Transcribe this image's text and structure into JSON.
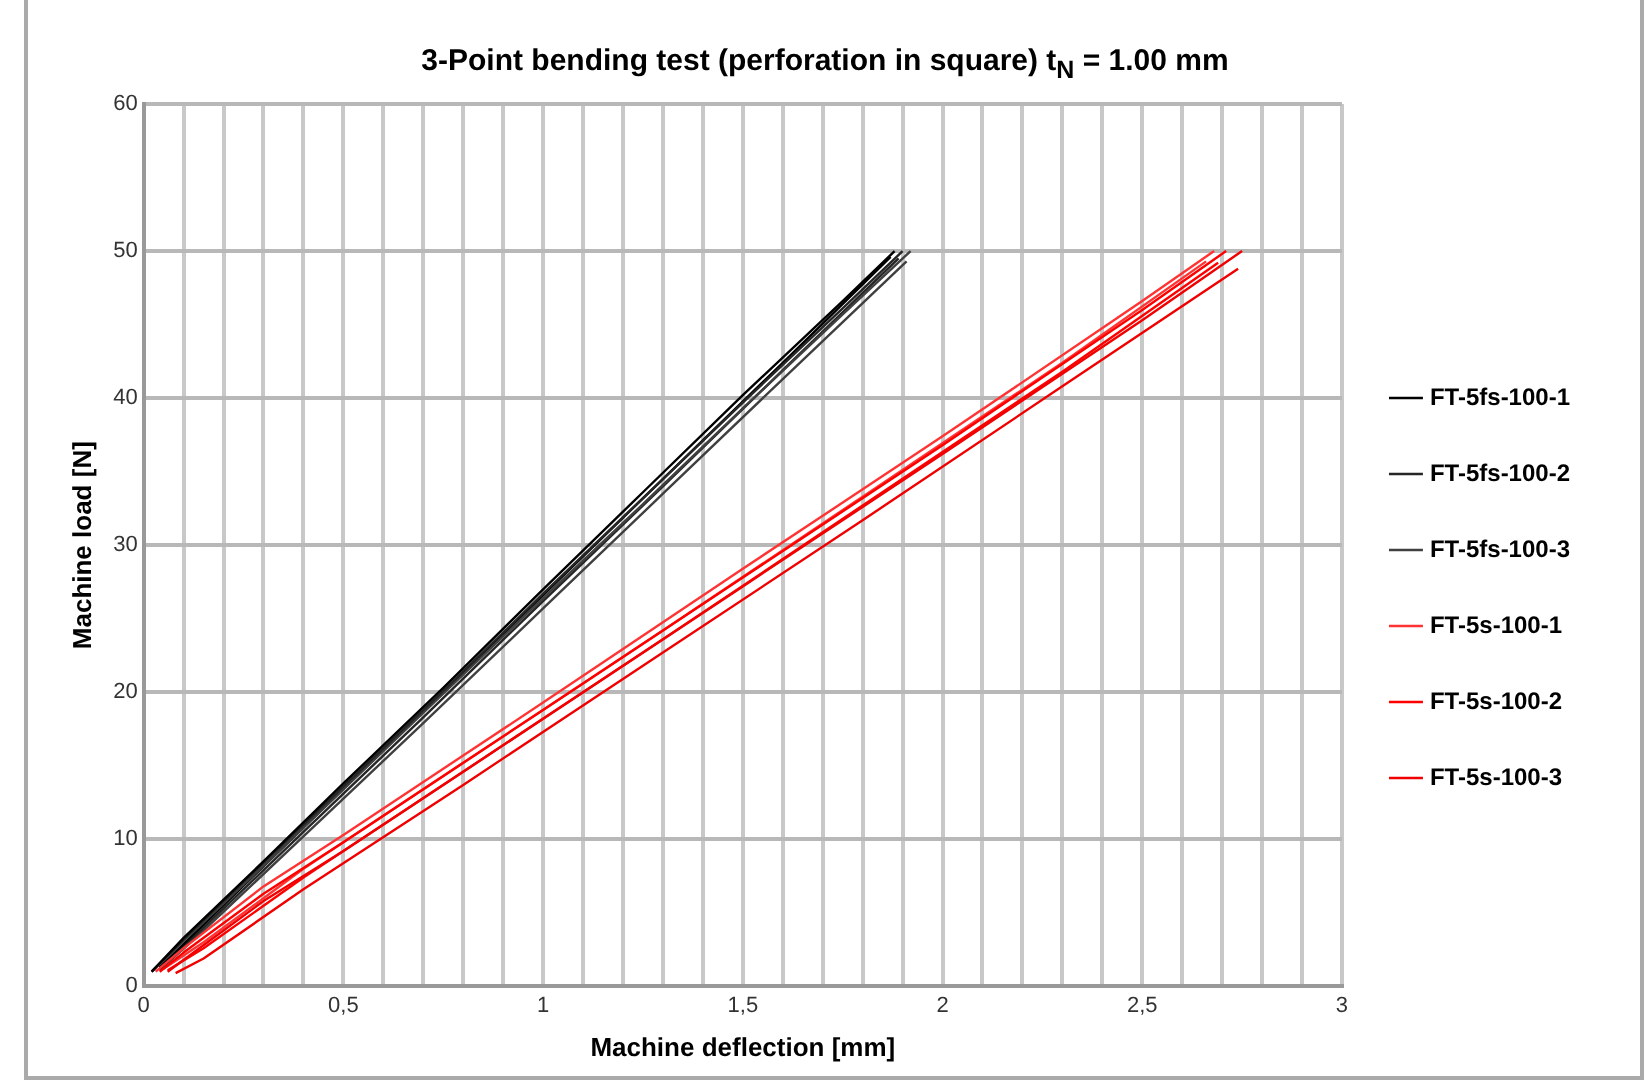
{
  "chart_data": {
    "type": "line",
    "title": "3-Point bending test (perforation in square) t$_{N}$ = 1.00 mm",
    "xlabel": "Machine deflection [mm]",
    "ylabel": "Machine load [N]",
    "xlim": [
      0,
      3
    ],
    "ylim": [
      0,
      60
    ],
    "xticks": [
      0,
      {
        "value": 0.1,
        "label": null
      },
      {
        "value": 0.2,
        "label": null
      },
      {
        "value": 0.3,
        "label": null
      },
      {
        "value": 0.4,
        "label": null
      },
      {
        "value": 0.5,
        "label": "0,5"
      },
      {
        "value": 0.6,
        "label": null
      },
      {
        "value": 0.7,
        "label": null
      },
      {
        "value": 0.8,
        "label": null
      },
      {
        "value": 0.9,
        "label": null
      },
      1,
      {
        "value": 1.1,
        "label": null
      },
      {
        "value": 1.2,
        "label": null
      },
      {
        "value": 1.3,
        "label": null
      },
      {
        "value": 1.4,
        "label": null
      },
      {
        "value": 1.5,
        "label": "1,5"
      },
      {
        "value": 1.6,
        "label": null
      },
      {
        "value": 1.7,
        "label": null
      },
      {
        "value": 1.8,
        "label": null
      },
      {
        "value": 1.9,
        "label": null
      },
      2,
      {
        "value": 2.1,
        "label": null
      },
      {
        "value": 2.2,
        "label": null
      },
      {
        "value": 2.3,
        "label": null
      },
      {
        "value": 2.4,
        "label": null
      },
      {
        "value": 2.5,
        "label": "2,5"
      },
      {
        "value": 2.6,
        "label": null
      },
      {
        "value": 2.7,
        "label": null
      },
      {
        "value": 2.8,
        "label": null
      },
      {
        "value": 2.9,
        "label": null
      },
      3
    ],
    "yticks": [
      0,
      10,
      20,
      30,
      40,
      50,
      60
    ],
    "grid": true,
    "legend": "right",
    "marker": "none",
    "line_style": "solid",
    "series": [
      {
        "name": "FT-5fs-100-1",
        "color": "#000000",
        "x": [
          0.02,
          0.1,
          0.3,
          0.5,
          0.75,
          1.0,
          1.25,
          1.5,
          1.75,
          1.88
        ],
        "values": [
          1,
          3.3,
          8.5,
          13.8,
          20.3,
          27,
          33.6,
          40.2,
          46.6,
          50
        ]
      },
      {
        "name": "FT-5fs-100-2",
        "color": "#262626",
        "x": [
          0.02,
          0.1,
          0.3,
          0.5,
          0.75,
          1.0,
          1.25,
          1.5,
          1.75,
          1.9
        ],
        "values": [
          1,
          3.2,
          8.4,
          13.6,
          20.1,
          26.7,
          33.2,
          39.7,
          46.1,
          50
        ]
      },
      {
        "name": "FT-5fs-100-3",
        "color": "#404040",
        "x": [
          0.02,
          0.1,
          0.3,
          0.5,
          0.75,
          1.0,
          1.25,
          1.5,
          1.75,
          1.92
        ],
        "values": [
          1,
          3.1,
          8.2,
          13.4,
          19.9,
          26.4,
          32.8,
          39.3,
          45.7,
          50
        ]
      },
      {
        "name": "FT-5s-100-1",
        "color": "#ff3333",
        "x": [
          0.03,
          0.1,
          0.3,
          0.5,
          1.0,
          1.5,
          2.0,
          2.5,
          2.68
        ],
        "values": [
          1,
          2.6,
          6.8,
          10.3,
          19.3,
          28.4,
          37.4,
          46.6,
          50
        ]
      },
      {
        "name": "FT-5s-100-2",
        "color": "#ff0000",
        "x": [
          0.04,
          0.1,
          0.3,
          0.5,
          1.0,
          1.5,
          2.0,
          2.5,
          2.71
        ],
        "values": [
          1,
          2.3,
          6.3,
          9.8,
          18.8,
          27.8,
          36.8,
          46.0,
          50
        ]
      },
      {
        "name": "FT-5s-100-3",
        "color": "#f00000",
        "x": [
          0.06,
          0.12,
          0.3,
          0.5,
          1.0,
          1.5,
          2.0,
          2.5,
          2.75
        ],
        "values": [
          1,
          2.2,
          5.8,
          9.2,
          18.2,
          27.2,
          36.2,
          45.3,
          50
        ]
      },
      {
        "color": "#000000",
        "x": [
          0.04,
          0.15,
          0.4,
          0.7,
          1.0,
          1.3,
          1.6,
          1.87
        ],
        "values": [
          1.3,
          4.2,
          10.8,
          18.7,
          26.6,
          34.5,
          42.4,
          49.6
        ]
      },
      {
        "color": "#262626",
        "x": [
          0.04,
          0.15,
          0.4,
          0.7,
          1.0,
          1.3,
          1.6,
          1.89
        ],
        "values": [
          1.2,
          4.0,
          10.5,
          18.3,
          26.2,
          34.0,
          41.9,
          49.5
        ]
      },
      {
        "color": "#404040",
        "x": [
          0.04,
          0.15,
          0.4,
          0.7,
          1.0,
          1.3,
          1.6,
          1.91
        ],
        "values": [
          1.1,
          3.8,
          10.2,
          17.9,
          25.7,
          33.5,
          41.3,
          49.3
        ]
      },
      {
        "color": "#ff3333",
        "x": [
          0.05,
          0.15,
          0.4,
          0.8,
          1.3,
          1.8,
          2.3,
          2.66
        ],
        "values": [
          1.2,
          3,
          8.0,
          15.2,
          24.2,
          33.3,
          42.4,
          49.3
        ]
      },
      {
        "color": "#ff0000",
        "x": [
          0.06,
          0.15,
          0.4,
          0.8,
          1.3,
          1.8,
          2.3,
          2.69
        ],
        "values": [
          1.1,
          2.6,
          7.4,
          14.6,
          23.6,
          32.7,
          41.8,
          49.2
        ]
      },
      {
        "color": "#f00000",
        "x": [
          0.08,
          0.15,
          0.4,
          0.8,
          1.3,
          1.8,
          2.3,
          2.74
        ],
        "values": [
          0.9,
          1.9,
          6.6,
          13.7,
          22.7,
          31.7,
          40.8,
          48.8
        ]
      }
    ]
  }
}
